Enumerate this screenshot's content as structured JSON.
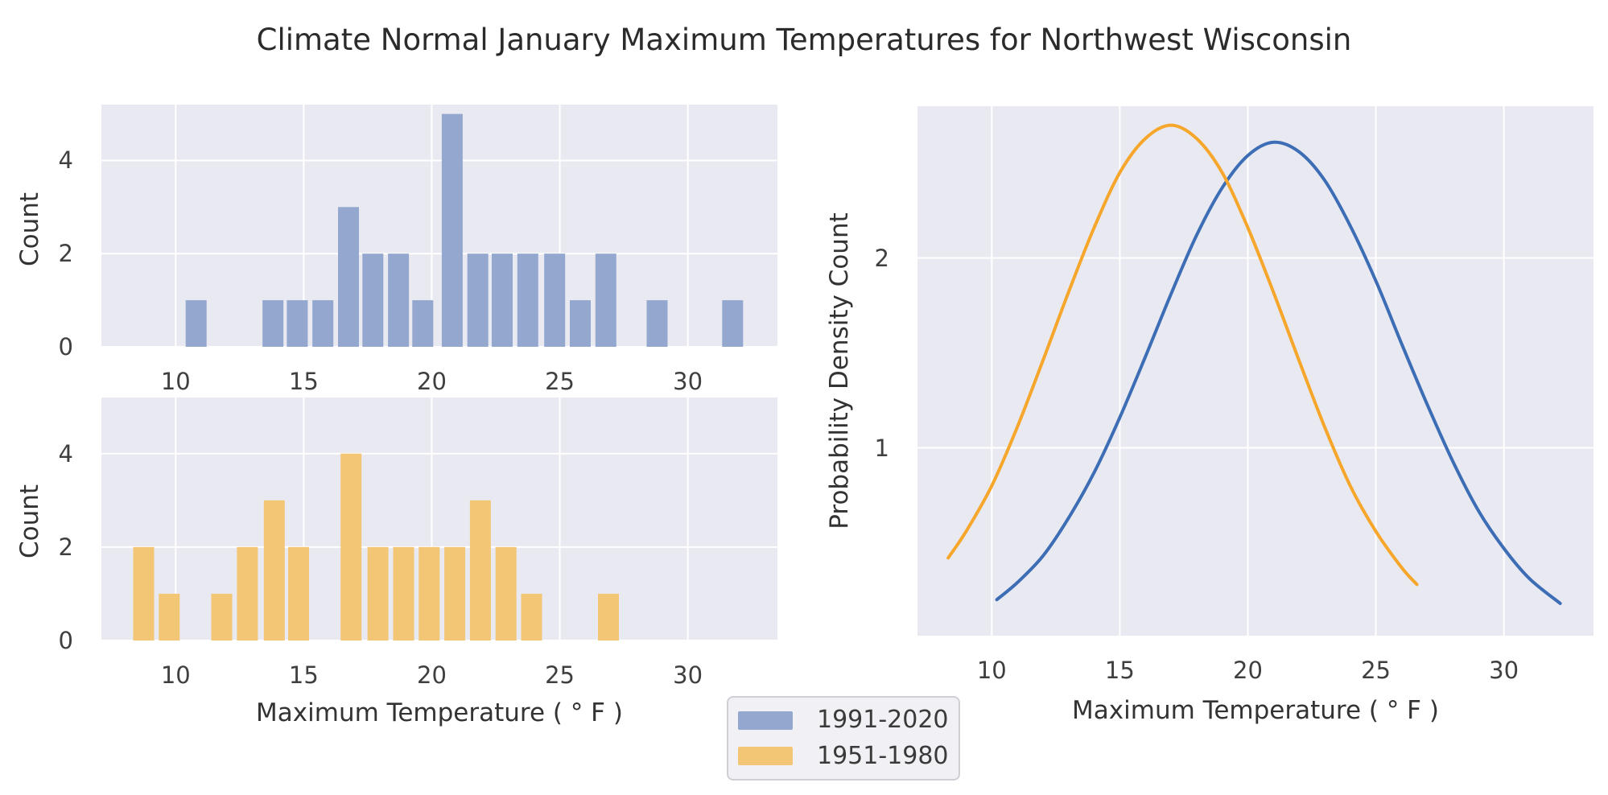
{
  "title": "Climate Normal January Maximum Temperatures for Northwest Wisconsin",
  "legend": {
    "items": [
      {
        "label": "1991-2020",
        "color_key": "hist_recent_fill"
      },
      {
        "label": "1951-1980",
        "color_key": "hist_past_fill"
      }
    ]
  },
  "colors": {
    "hist_recent_fill": "#93a7cf",
    "hist_past_fill": "#f3c676",
    "kde_recent_line": "#3c6db5",
    "kde_past_line": "#f6a72b",
    "panel_bg": "#e9e9f1",
    "grid": "#ffffff",
    "text": "#3f3f3f"
  },
  "chart_data": [
    {
      "id": "hist-recent",
      "type": "bar",
      "series_name": "1991-2020",
      "xlabel": "",
      "ylabel": "Count",
      "xlim": [
        7.1,
        33.5
      ],
      "ylim": [
        0,
        5.2
      ],
      "xticks": [
        10,
        15,
        20,
        25,
        30
      ],
      "yticks": [
        0,
        2,
        4
      ],
      "grid": true,
      "bar_width": 0.88,
      "bars": {
        "centers": [
          10.8,
          13.8,
          14.75,
          15.75,
          16.75,
          17.7,
          18.7,
          19.65,
          20.8,
          21.8,
          22.75,
          23.75,
          24.8,
          25.8,
          26.8,
          28.8,
          31.75
        ],
        "counts": [
          1,
          1,
          1,
          1,
          3,
          2,
          2,
          1,
          5,
          2,
          2,
          2,
          2,
          1,
          2,
          1,
          1
        ]
      },
      "color_key": "hist_recent_fill",
      "total_count": 30
    },
    {
      "id": "hist-past",
      "type": "bar",
      "series_name": "1951-1980",
      "xlabel": "Maximum Temperature ( ° F )",
      "ylabel": "Count",
      "xlim": [
        7.1,
        33.5
      ],
      "ylim": [
        0,
        5.2
      ],
      "xticks": [
        10,
        15,
        20,
        25,
        30
      ],
      "yticks": [
        0,
        2,
        4
      ],
      "grid": true,
      "bar_width": 0.88,
      "bars": {
        "centers": [
          8.75,
          9.75,
          11.8,
          12.8,
          13.85,
          14.8,
          16.85,
          17.9,
          18.9,
          19.9,
          20.9,
          21.9,
          22.9,
          23.9,
          26.9
        ],
        "counts": [
          2,
          1,
          1,
          2,
          3,
          2,
          4,
          2,
          2,
          2,
          2,
          3,
          2,
          1,
          1
        ]
      },
      "color_key": "hist_past_fill",
      "total_count": 30
    },
    {
      "id": "kde",
      "type": "line",
      "xlabel": "Maximum Temperature ( ° F )",
      "ylabel": "Probability Density Count",
      "xlim": [
        7.1,
        33.5
      ],
      "ylim": [
        0.01,
        2.8
      ],
      "xticks": [
        10,
        15,
        20,
        25,
        30
      ],
      "yticks": [
        1,
        2
      ],
      "grid": true,
      "series": [
        {
          "name": "1991-2020",
          "color_key": "kde_recent_line",
          "shape": "gaussian_kde",
          "peak_value": 2.61,
          "peak_x": 21.1,
          "sigma": 4.8,
          "x_start": 10.2,
          "x_end": 32.2,
          "points_x": [
            10.2,
            11,
            12,
            13,
            14,
            15,
            16,
            17,
            18,
            19,
            20,
            21,
            22,
            23,
            24,
            25,
            26,
            27,
            28,
            29,
            30,
            31,
            32.2
          ],
          "points_y": [
            0.2,
            0.29,
            0.43,
            0.63,
            0.87,
            1.16,
            1.48,
            1.81,
            2.12,
            2.37,
            2.54,
            2.61,
            2.56,
            2.41,
            2.17,
            1.88,
            1.55,
            1.23,
            0.93,
            0.67,
            0.47,
            0.31,
            0.18
          ]
        },
        {
          "name": "1951-1980",
          "color_key": "kde_past_line",
          "shape": "gaussian_kde",
          "peak_value": 2.7,
          "peak_x": 17.0,
          "sigma": 4.5,
          "x_start": 8.3,
          "x_end": 26.6,
          "points_x": [
            8.3,
            9,
            10,
            11,
            12,
            13,
            14,
            15,
            16,
            17,
            18,
            19,
            20,
            21,
            22,
            23,
            24,
            25,
            26,
            26.6
          ],
          "points_y": [
            0.42,
            0.56,
            0.8,
            1.11,
            1.46,
            1.82,
            2.16,
            2.45,
            2.63,
            2.7,
            2.63,
            2.45,
            2.16,
            1.82,
            1.46,
            1.11,
            0.8,
            0.56,
            0.37,
            0.28
          ]
        }
      ]
    }
  ]
}
